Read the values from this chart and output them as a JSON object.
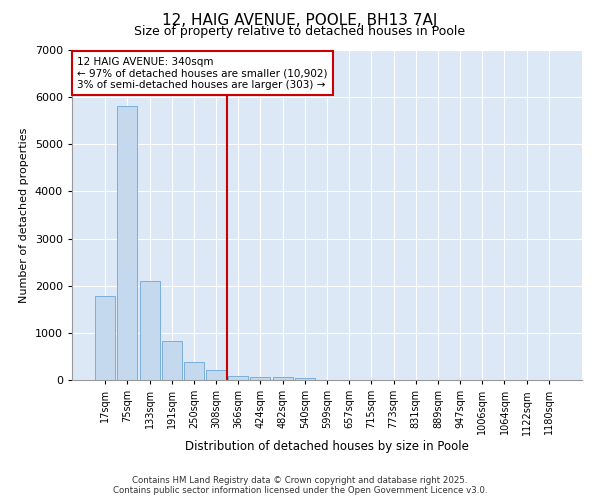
{
  "title_line1": "12, HAIG AVENUE, POOLE, BH13 7AJ",
  "title_line2": "Size of property relative to detached houses in Poole",
  "xlabel": "Distribution of detached houses by size in Poole",
  "ylabel": "Number of detached properties",
  "categories": [
    "17sqm",
    "75sqm",
    "133sqm",
    "191sqm",
    "250sqm",
    "308sqm",
    "366sqm",
    "424sqm",
    "482sqm",
    "540sqm",
    "599sqm",
    "657sqm",
    "715sqm",
    "773sqm",
    "831sqm",
    "889sqm",
    "947sqm",
    "1006sqm",
    "1064sqm",
    "1122sqm",
    "1180sqm"
  ],
  "values": [
    1780,
    5820,
    2090,
    820,
    380,
    220,
    95,
    70,
    60,
    45,
    5,
    0,
    0,
    0,
    0,
    0,
    0,
    0,
    0,
    0,
    0
  ],
  "bar_color": "#c5d9ee",
  "bar_edge_color": "#7aafda",
  "vline_x": 5.5,
  "vline_color": "#cc0000",
  "annotation_text": "12 HAIG AVENUE: 340sqm\n← 97% of detached houses are smaller (10,902)\n3% of semi-detached houses are larger (303) →",
  "annotation_box_facecolor": "#ffffff",
  "annotation_box_edgecolor": "#cc0000",
  "ylim": [
    0,
    7000
  ],
  "yticks": [
    0,
    1000,
    2000,
    3000,
    4000,
    5000,
    6000,
    7000
  ],
  "plot_bg_color": "#dce8f5",
  "fig_bg_color": "#ffffff",
  "grid_color": "#ffffff",
  "footer_line1": "Contains HM Land Registry data © Crown copyright and database right 2025.",
  "footer_line2": "Contains public sector information licensed under the Open Government Licence v3.0."
}
